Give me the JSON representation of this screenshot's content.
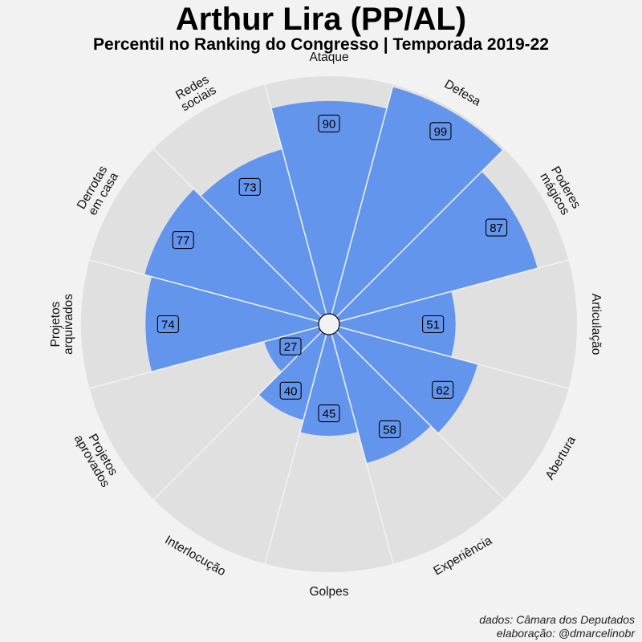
{
  "chart_data": {
    "type": "polar-bar",
    "title": "Arthur Lira (PP/AL)",
    "subtitle": "Percentil no Ranking do Congresso | Temporada 2019-22",
    "rlim": [
      0,
      100
    ],
    "categories": [
      [
        "Ataque"
      ],
      [
        "Defesa"
      ],
      [
        "Poderes",
        "mágicos"
      ],
      [
        "Articulação"
      ],
      [
        "Abertura"
      ],
      [
        "Experiência"
      ],
      [
        "Golpes"
      ],
      [
        "Interlocução"
      ],
      [
        "Projetos",
        "aprovados"
      ],
      [
        "Projetos",
        "arquivados"
      ],
      [
        "Derrotas",
        "em casa"
      ],
      [
        "Redes",
        "sociais"
      ]
    ],
    "values": [
      90,
      99,
      87,
      51,
      62,
      58,
      45,
      40,
      27,
      74,
      77,
      73
    ],
    "colors": {
      "bar": "#6495ed",
      "background_wedge": "#e0e0e0",
      "separator": "#f2f2f2",
      "label_box": "#6495ed"
    }
  },
  "credits": {
    "line1": "dados: Câmara dos Deputados",
    "line2": "elaboração: @dmarcelinobr"
  }
}
